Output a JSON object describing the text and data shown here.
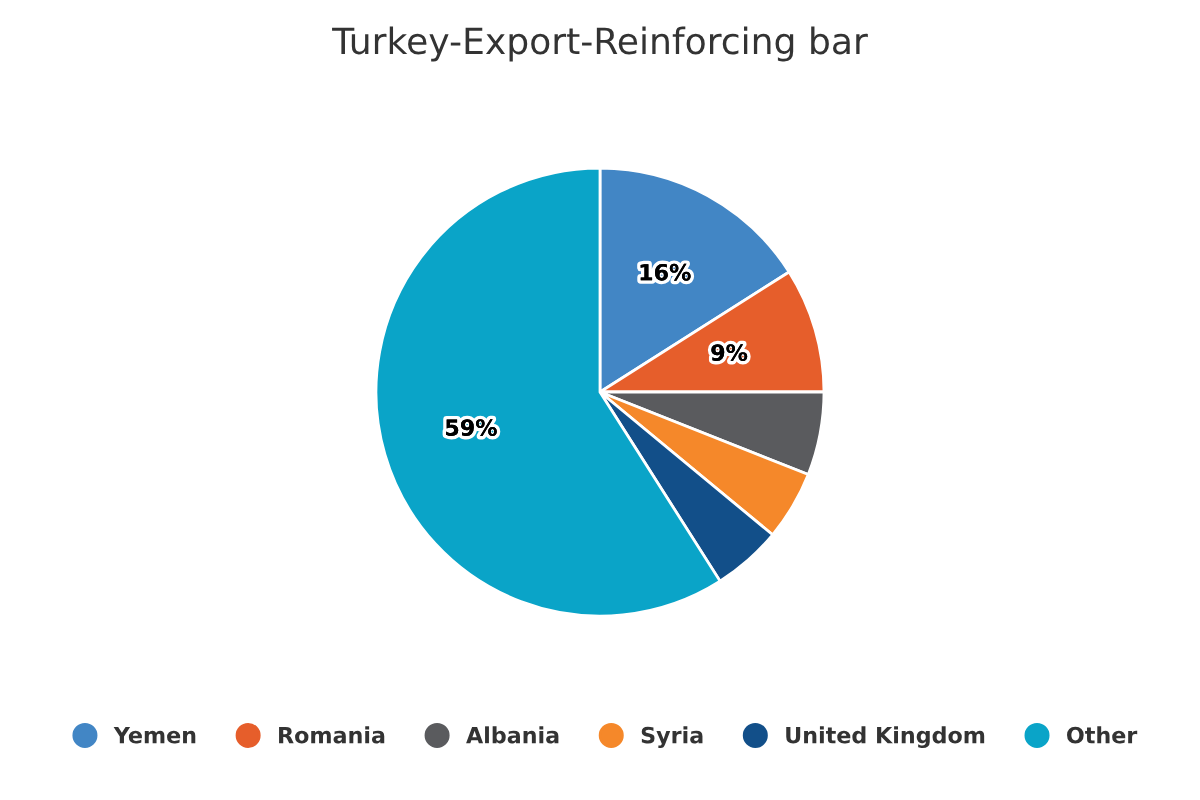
{
  "chart_data": {
    "type": "pie",
    "title": "Turkey-Export-Reinforcing bar",
    "categories": [
      "Yemen",
      "Romania",
      "Albania",
      "Syria",
      "United Kingdom",
      "Other"
    ],
    "values": [
      16,
      9,
      6,
      5,
      5,
      59
    ],
    "colors": [
      "#4286c5",
      "#e65e2b",
      "#5a5b5e",
      "#f5882a",
      "#124f89",
      "#0aa4c8"
    ],
    "value_labels": [
      "16%",
      "9%",
      null,
      null,
      null,
      "59%"
    ],
    "legend": "bottom"
  }
}
